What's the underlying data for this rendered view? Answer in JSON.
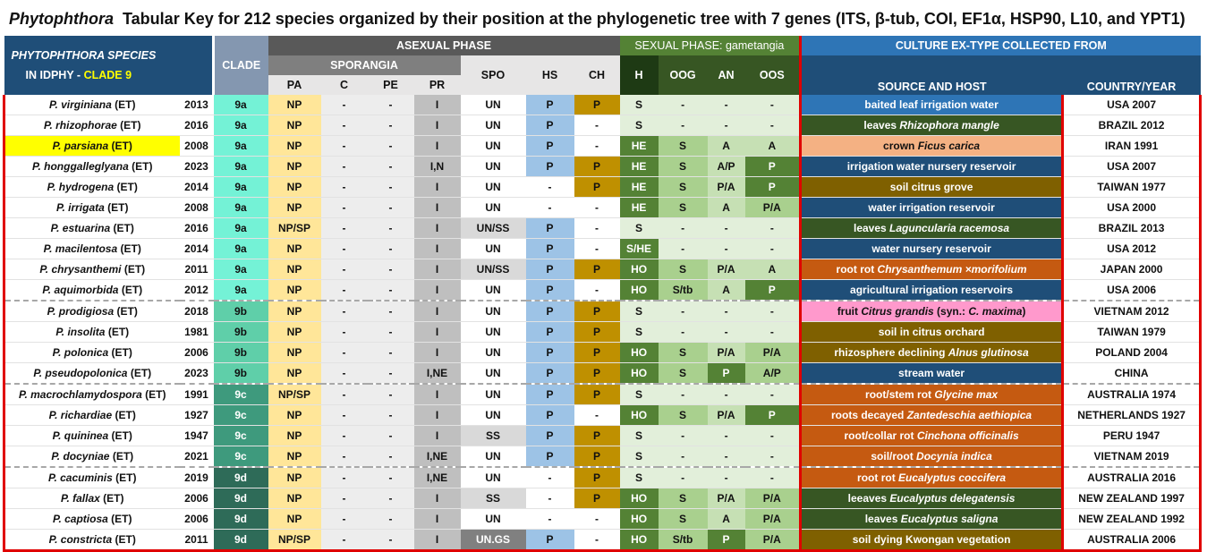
{
  "title": {
    "genus": "Phytophthora",
    "rest": "Tabular Key for 212 species organized by their position at the phylogenetic tree with 7 genes (ITS, β-tub, COI, EF1α, HSP90, L10, and YPT1)"
  },
  "header": {
    "species_line1": "PHYTOPHTHORA SPECIES",
    "species_line2": "IN IDPHY -",
    "clade_tag": "CLADE 9",
    "clade": "CLADE",
    "asexual": "ASEXUAL PHASE",
    "sporangia": "SPORANGIA",
    "pa": "PA",
    "c": "C",
    "pe": "PE",
    "pr": "PR",
    "spo": "SPO",
    "hs": "HS",
    "ch": "CH",
    "sexual": "SEXUAL PHASE: gametangia",
    "h": "H",
    "oog": "OOG",
    "an": "AN",
    "oos": "OOS",
    "culture": "CULTURE EX-TYPE COLLECTED FROM",
    "source": "SOURCE AND HOST",
    "country": "COUNTRY/YEAR"
  },
  "colors": {
    "title_text": "#111111",
    "header_dark": "#1f4e78",
    "header_gray": "#595959",
    "header_green": "#548235",
    "header_blue": "#2e75b6",
    "highlight_yellow": "#ffff00",
    "accent_yellow_text": "#ffff00",
    "culture_border_red": "#e00000"
  },
  "rows": [
    {
      "species": "P. virginiana",
      "tag": "(ET)",
      "year": "2013",
      "clade": "9a",
      "pa": "NP",
      "c": "-",
      "pe": "-",
      "pr": "I",
      "spo": "UN",
      "hs": "P",
      "ch": "P",
      "h": "S",
      "oog": "-",
      "an": "-",
      "oos": "-",
      "source": [
        {
          "t": "baited leaf irrigation water",
          "i": false
        }
      ],
      "country": "USA 2007",
      "src_color": "#2e75b6"
    },
    {
      "species": "P. rhizophorae",
      "tag": "(ET)",
      "year": "2016",
      "clade": "9a",
      "pa": "NP",
      "c": "-",
      "pe": "-",
      "pr": "I",
      "spo": "UN",
      "hs": "P",
      "ch": "-",
      "h": "S",
      "oog": "-",
      "an": "-",
      "oos": "-",
      "source": [
        {
          "t": "leaves ",
          "i": false
        },
        {
          "t": "Rhizophora mangle",
          "i": true
        }
      ],
      "country": "BRAZIL 2012",
      "src_color": "#375623"
    },
    {
      "species": "P. parsiana",
      "tag": "(ET)",
      "year": "2008",
      "clade": "9a",
      "pa": "NP",
      "c": "-",
      "pe": "-",
      "pr": "I",
      "spo": "UN",
      "hs": "P",
      "ch": "-",
      "h": "HE",
      "oog": "S",
      "an": "A",
      "oos": "A",
      "source": [
        {
          "t": "crown ",
          "i": false
        },
        {
          "t": "Ficus carica",
          "i": true
        }
      ],
      "country": "IRAN 1991",
      "src_color": "#f4b183",
      "highlight": true
    },
    {
      "species": "P. honggalleglyana",
      "tag": "(ET)",
      "year": "2023",
      "clade": "9a",
      "pa": "NP",
      "c": "-",
      "pe": "-",
      "pr": "I,N",
      "spo": "UN",
      "hs": "P",
      "ch": "P",
      "h": "HE",
      "oog": "S",
      "an": "A/P",
      "oos": "P",
      "source": [
        {
          "t": "irrigation water nursery reservoir",
          "i": false
        }
      ],
      "country": "USA 2007",
      "src_color": "#1f4e78"
    },
    {
      "species": "P. hydrogena",
      "tag": "(ET)",
      "year": "2014",
      "clade": "9a",
      "pa": "NP",
      "c": "-",
      "pe": "-",
      "pr": "I",
      "spo": "UN",
      "hs": "-",
      "ch": "P",
      "h": "HE",
      "oog": "S",
      "an": "P/A",
      "oos": "P",
      "source": [
        {
          "t": "soil citrus grove",
          "i": false
        }
      ],
      "country": "TAIWAN 1977",
      "src_color": "#7f6000"
    },
    {
      "species": "P. irrigata",
      "tag": "(ET)",
      "year": "2008",
      "clade": "9a",
      "pa": "NP",
      "c": "-",
      "pe": "-",
      "pr": "I",
      "spo": "UN",
      "hs": "-",
      "ch": "-",
      "h": "HE",
      "oog": "S",
      "an": "A",
      "oos": "P/A",
      "source": [
        {
          "t": "water irrigation reservoir",
          "i": false
        }
      ],
      "country": "USA 2000",
      "src_color": "#1f4e78"
    },
    {
      "species": "P. estuarina",
      "tag": "(ET)",
      "year": "2016",
      "clade": "9a",
      "pa": "NP/SP",
      "c": "-",
      "pe": "-",
      "pr": "I",
      "spo": "UN/SS",
      "hs": "P",
      "ch": "-",
      "h": "S",
      "oog": "-",
      "an": "-",
      "oos": "-",
      "source": [
        {
          "t": "leaves ",
          "i": false
        },
        {
          "t": "Laguncularia racemosa",
          "i": true
        }
      ],
      "country": "BRAZIL 2013",
      "src_color": "#375623"
    },
    {
      "species": "P. macilentosa",
      "tag": "(ET)",
      "year": "2014",
      "clade": "9a",
      "pa": "NP",
      "c": "-",
      "pe": "-",
      "pr": "I",
      "spo": "UN",
      "hs": "P",
      "ch": "-",
      "h": "S/HE",
      "oog": "-",
      "an": "-",
      "oos": "-",
      "source": [
        {
          "t": "water nursery reservoir",
          "i": false
        }
      ],
      "country": "USA 2012",
      "src_color": "#1f4e78"
    },
    {
      "species": "P. chrysanthemi",
      "tag": "(ET)",
      "year": "2011",
      "clade": "9a",
      "pa": "NP",
      "c": "-",
      "pe": "-",
      "pr": "I",
      "spo": "UN/SS",
      "hs": "P",
      "ch": "P",
      "h": "HO",
      "oog": "S",
      "an": "P/A",
      "oos": "A",
      "source": [
        {
          "t": "root rot ",
          "i": false
        },
        {
          "t": "Chrysanthemum ×morifolium",
          "i": true
        }
      ],
      "country": "JAPAN 2000",
      "src_color": "#c55a11"
    },
    {
      "species": "P. aquimorbida",
      "tag": "(ET)",
      "year": "2012",
      "clade": "9a",
      "pa": "NP",
      "c": "-",
      "pe": "-",
      "pr": "I",
      "spo": "UN",
      "hs": "P",
      "ch": "-",
      "h": "HO",
      "oog": "S/tb",
      "an": "A",
      "oos": "P",
      "source": [
        {
          "t": "agricultural irrigation reservoirs",
          "i": false
        }
      ],
      "country": "USA 2006",
      "src_color": "#1f4e78"
    },
    {
      "species": "P. prodigiosa",
      "tag": "(ET)",
      "year": "2018",
      "clade": "9b",
      "pa": "NP",
      "c": "-",
      "pe": "-",
      "pr": "I",
      "spo": "UN",
      "hs": "P",
      "ch": "P",
      "h": "S",
      "oog": "-",
      "an": "-",
      "oos": "-",
      "source": [
        {
          "t": "fruit ",
          "i": false
        },
        {
          "t": "Citrus grandis",
          "i": true
        },
        {
          "t": " (syn.: ",
          "i": false
        },
        {
          "t": "C. maxima",
          "i": true
        },
        {
          "t": ")",
          "i": false
        }
      ],
      "country": "VIETNAM 2012",
      "src_color": "#ff99cc",
      "sep": true
    },
    {
      "species": "P. insolita",
      "tag": "(ET)",
      "year": "1981",
      "clade": "9b",
      "pa": "NP",
      "c": "-",
      "pe": "-",
      "pr": "I",
      "spo": "UN",
      "hs": "P",
      "ch": "P",
      "h": "S",
      "oog": "-",
      "an": "-",
      "oos": "-",
      "source": [
        {
          "t": "soil in citrus orchard",
          "i": false
        }
      ],
      "country": "TAIWAN 1979",
      "src_color": "#7f6000"
    },
    {
      "species": "P. polonica",
      "tag": "(ET)",
      "year": "2006",
      "clade": "9b",
      "pa": "NP",
      "c": "-",
      "pe": "-",
      "pr": "I",
      "spo": "UN",
      "hs": "P",
      "ch": "P",
      "h": "HO",
      "oog": "S",
      "an": "P/A",
      "oos": "P/A",
      "source": [
        {
          "t": "rhizosphere declining ",
          "i": false
        },
        {
          "t": "Alnus glutinosa",
          "i": true
        }
      ],
      "country": "POLAND 2004",
      "src_color": "#7f6000"
    },
    {
      "species": "P. pseudopolonica",
      "tag": "(ET)",
      "year": "2023",
      "clade": "9b",
      "pa": "NP",
      "c": "-",
      "pe": "-",
      "pr": "I,NE",
      "spo": "UN",
      "hs": "P",
      "ch": "P",
      "h": "HO",
      "oog": "S",
      "an": "P",
      "oos": "A/P",
      "source": [
        {
          "t": "stream water",
          "i": false
        }
      ],
      "country": "CHINA",
      "src_color": "#1f4e78"
    },
    {
      "species": "P. macrochlamydospora",
      "tag": "(ET)",
      "year": "1991",
      "clade": "9c",
      "pa": "NP/SP",
      "c": "-",
      "pe": "-",
      "pr": "I",
      "spo": "UN",
      "hs": "P",
      "ch": "P",
      "h": "S",
      "oog": "-",
      "an": "-",
      "oos": "-",
      "source": [
        {
          "t": "root/stem rot ",
          "i": false
        },
        {
          "t": "Glycine max",
          "i": true
        }
      ],
      "country": "AUSTRALIA 1974",
      "src_color": "#c55a11",
      "sep": true
    },
    {
      "species": "P. richardiae",
      "tag": "(ET)",
      "year": "1927",
      "clade": "9c",
      "pa": "NP",
      "c": "-",
      "pe": "-",
      "pr": "I",
      "spo": "UN",
      "hs": "P",
      "ch": "-",
      "h": "HO",
      "oog": "S",
      "an": "P/A",
      "oos": "P",
      "source": [
        {
          "t": "roots decayed ",
          "i": false
        },
        {
          "t": "Zantedeschia aethiopica",
          "i": true
        }
      ],
      "country": "NETHERLANDS 1927",
      "src_color": "#c55a11"
    },
    {
      "species": "P. quininea",
      "tag": "(ET)",
      "year": "1947",
      "clade": "9c",
      "pa": "NP",
      "c": "-",
      "pe": "-",
      "pr": "I",
      "spo": "SS",
      "hs": "P",
      "ch": "P",
      "h": "S",
      "oog": "-",
      "an": "-",
      "oos": "-",
      "source": [
        {
          "t": "root/collar rot ",
          "i": false
        },
        {
          "t": "Cinchona officinalis",
          "i": true
        }
      ],
      "country": "PERU 1947",
      "src_color": "#c55a11"
    },
    {
      "species": "P. docyniae",
      "tag": "(ET)",
      "year": "2021",
      "clade": "9c",
      "pa": "NP",
      "c": "-",
      "pe": "-",
      "pr": "I,NE",
      "spo": "UN",
      "hs": "P",
      "ch": "P",
      "h": "S",
      "oog": "-",
      "an": "-",
      "oos": "-",
      "source": [
        {
          "t": "soil/root ",
          "i": false
        },
        {
          "t": "Docynia indica",
          "i": true
        }
      ],
      "country": "VIETNAM 2019",
      "src_color": "#c55a11"
    },
    {
      "species": "P. cacuminis",
      "tag": "(ET)",
      "year": "2019",
      "clade": "9d",
      "pa": "NP",
      "c": "-",
      "pe": "-",
      "pr": "I,NE",
      "spo": "UN",
      "hs": "-",
      "ch": "P",
      "h": "S",
      "oog": "-",
      "an": "-",
      "oos": "-",
      "source": [
        {
          "t": "root rot ",
          "i": false
        },
        {
          "t": "Eucalyptus coccifera",
          "i": true
        }
      ],
      "country": "AUSTRALIA 2016",
      "src_color": "#c55a11",
      "sep": true
    },
    {
      "species": "P. fallax",
      "tag": "(ET)",
      "year": "2006",
      "clade": "9d",
      "pa": "NP",
      "c": "-",
      "pe": "-",
      "pr": "I",
      "spo": "SS",
      "hs": "-",
      "ch": "P",
      "h": "HO",
      "oog": "S",
      "an": "P/A",
      "oos": "P/A",
      "source": [
        {
          "t": "leeaves ",
          "i": false
        },
        {
          "t": "Eucalyptus delegatensis",
          "i": true
        }
      ],
      "country": "NEW ZEALAND 1997",
      "src_color": "#375623"
    },
    {
      "species": "P. captiosa",
      "tag": "(ET)",
      "year": "2006",
      "clade": "9d",
      "pa": "NP",
      "c": "-",
      "pe": "-",
      "pr": "I",
      "spo": "UN",
      "hs": "-",
      "ch": "-",
      "h": "HO",
      "oog": "S",
      "an": "A",
      "oos": "P/A",
      "source": [
        {
          "t": "leaves ",
          "i": false
        },
        {
          "t": "Eucalyptus saligna",
          "i": true
        }
      ],
      "country": "NEW ZEALAND 1992",
      "src_color": "#375623"
    },
    {
      "species": "P. constricta",
      "tag": "(ET)",
      "year": "2011",
      "clade": "9d",
      "pa": "NP/SP",
      "c": "-",
      "pe": "-",
      "pr": "I",
      "spo": "UN.GS",
      "hs": "P",
      "ch": "-",
      "h": "HO",
      "oog": "S/tb",
      "an": "P",
      "oos": "P/A",
      "source": [
        {
          "t": "soil dying Kwongan vegetation",
          "i": false
        }
      ],
      "country": "AUSTRALIA 2006",
      "src_color": "#7f6000"
    }
  ]
}
